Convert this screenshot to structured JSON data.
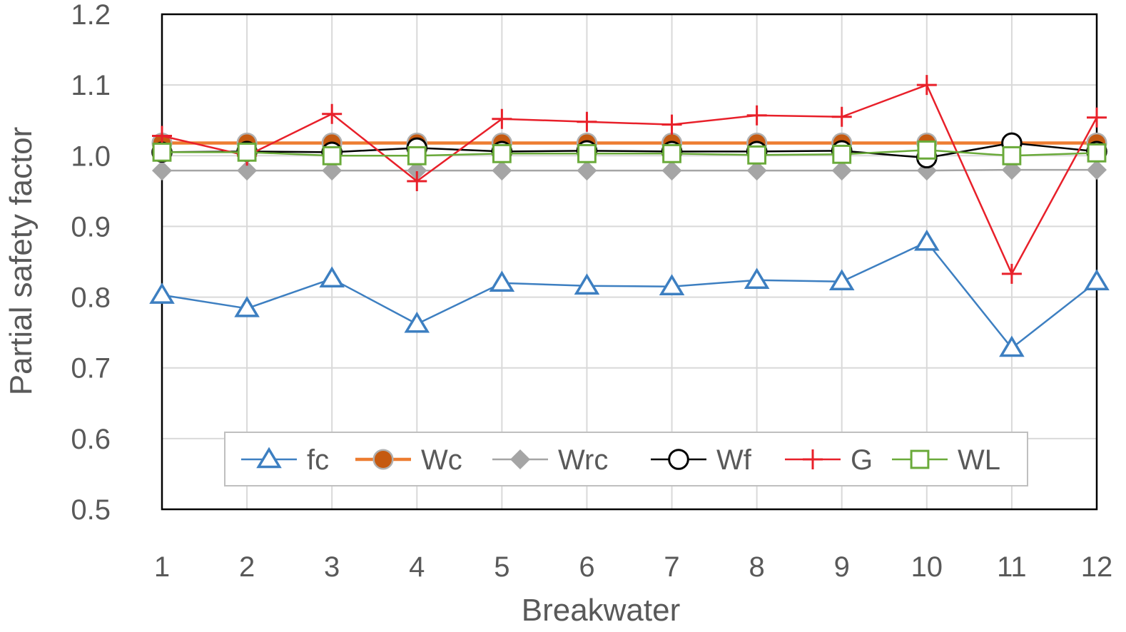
{
  "chart_data": {
    "type": "line",
    "xlabel": "Breakwater",
    "ylabel": "Partial safety factor",
    "x": [
      1,
      2,
      3,
      4,
      5,
      6,
      7,
      8,
      9,
      10,
      11,
      12
    ],
    "x_tick_labels": [
      "1",
      "2",
      "3",
      "4",
      "5",
      "6",
      "7",
      "8",
      "9",
      "10",
      "11",
      "12"
    ],
    "ylim": [
      0.5,
      1.2
    ],
    "y_ticks": [
      0.5,
      0.6,
      0.7,
      0.8,
      0.9,
      1.0,
      1.1,
      1.2
    ],
    "y_tick_labels": [
      "0.5",
      "0.6",
      "0.7",
      "0.8",
      "0.9",
      "1.0",
      "1.1",
      "1.2"
    ],
    "grid": true,
    "legend_position": "bottom-center",
    "series": [
      {
        "name": "fc",
        "color": "#3d7fc1",
        "marker": "triangle",
        "values": [
          0.803,
          0.784,
          0.826,
          0.762,
          0.82,
          0.816,
          0.815,
          0.824,
          0.822,
          0.878,
          0.728,
          0.822
        ]
      },
      {
        "name": "Wc",
        "color": "#ed7d31",
        "marker": "circle-filled",
        "values": [
          1.018,
          1.018,
          1.018,
          1.018,
          1.018,
          1.018,
          1.018,
          1.018,
          1.018,
          1.018,
          1.018,
          1.018
        ]
      },
      {
        "name": "Wrc",
        "color": "#a5a5a5",
        "marker": "diamond",
        "values": [
          0.979,
          0.979,
          0.979,
          0.979,
          0.979,
          0.979,
          0.979,
          0.979,
          0.979,
          0.979,
          0.98,
          0.98
        ]
      },
      {
        "name": "Wf",
        "color": "#000000",
        "marker": "circle-open",
        "values": [
          1.005,
          1.006,
          1.005,
          1.011,
          1.006,
          1.007,
          1.006,
          1.006,
          1.007,
          0.997,
          1.018,
          1.006
        ]
      },
      {
        "name": "G",
        "color": "#e8202a",
        "marker": "plus",
        "values": [
          1.028,
          1.0,
          1.059,
          0.964,
          1.052,
          1.048,
          1.044,
          1.057,
          1.055,
          1.1,
          0.833,
          1.054
        ]
      },
      {
        "name": "WL",
        "color": "#6aaa3a",
        "marker": "square-open",
        "values": [
          1.005,
          1.005,
          1.0,
          1.0,
          1.003,
          1.003,
          1.003,
          1.001,
          1.002,
          1.008,
          1.0,
          1.004
        ]
      }
    ]
  }
}
